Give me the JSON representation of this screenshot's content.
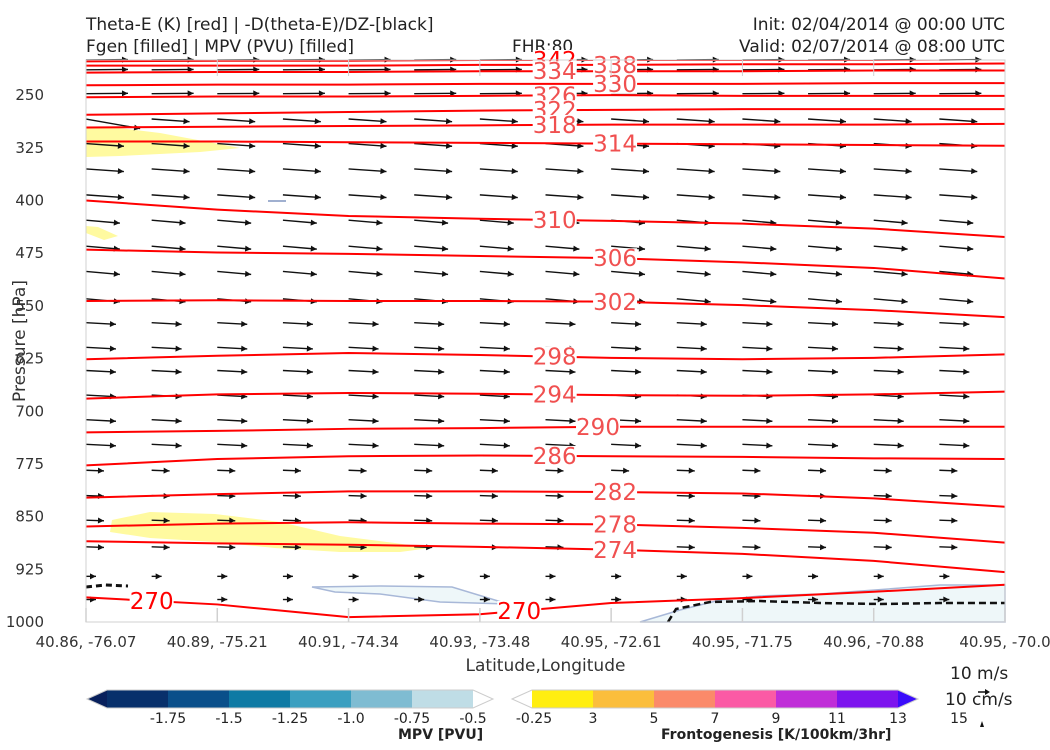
{
  "header": {
    "title_line1": "Theta-E (K) [red] | -D(theta-E)/DZ-[black]",
    "title_line2": "Fgen [filled] | MPV (PVU) [filled]",
    "fhr": "FHR:80",
    "init": "Init: 02/04/2014 @ 00:00 UTC",
    "valid": "Valid: 02/07/2014 @ 08:00 UTC"
  },
  "colors": {
    "theta_e": "#ff0000",
    "theta_e_label": "#f05050",
    "vectors": "#111111",
    "fgen_fill": "#fffaa0",
    "mpv_fill": "#eef7f9",
    "mpv_edge": "#a8b8d8"
  },
  "chart_data": {
    "type": "cross-section",
    "xlabel": "Latitude,Longitude",
    "ylabel": "Pressure [hPa]",
    "x_ticks": [
      "40.86, -76.07",
      "40.89, -75.21",
      "40.91, -74.34",
      "40.93, -73.48",
      "40.95, -72.61",
      "40.95, -71.75",
      "40.96, -70.88",
      "40.95, -70.0"
    ],
    "y_ticks": [
      "250",
      "325",
      "400",
      "475",
      "550",
      "625",
      "700",
      "775",
      "850",
      "925",
      "1000"
    ],
    "ylim": [
      1000,
      200
    ],
    "y_scale": "linear, inverted",
    "xlim": [
      0,
      7
    ],
    "theta_e_contours": [
      {
        "value": 342,
        "label": "342",
        "p": [
          202,
          201,
          201,
          200,
          200,
          200,
          200,
          199
        ]
      },
      {
        "value": 338,
        "label": "338",
        "p": [
          208,
          208,
          208,
          207,
          207,
          206,
          206,
          205
        ]
      },
      {
        "value": 334,
        "label": "334",
        "p": [
          218,
          217,
          217,
          216,
          216,
          216,
          215,
          215
        ]
      },
      {
        "value": 330,
        "label": "330",
        "p": [
          236,
          235,
          235,
          234,
          234,
          234,
          233,
          233
        ]
      },
      {
        "value": 326,
        "label": "326",
        "p": [
          253,
          252,
          252,
          251,
          250,
          251,
          251,
          251
        ]
      },
      {
        "value": 322,
        "label": "322",
        "p": [
          278,
          276,
          274,
          272,
          271,
          270,
          270,
          270
        ]
      },
      {
        "value": 318,
        "label": "318",
        "p": [
          296,
          295,
          294,
          293,
          292,
          292,
          292,
          291
        ]
      },
      {
        "value": 314,
        "label": "314",
        "p": [
          316,
          316,
          317,
          318,
          319,
          320,
          321,
          322
        ]
      },
      {
        "value": 310,
        "label": "310",
        "p": [
          400,
          413,
          422,
          426,
          429,
          433,
          440,
          452
        ]
      },
      {
        "value": 306,
        "label": "306",
        "p": [
          470,
          474,
          476,
          479,
          482,
          488,
          496,
          511
        ]
      },
      {
        "value": 302,
        "label": "302",
        "p": [
          543,
          542,
          543,
          543,
          544,
          549,
          556,
          566
        ]
      },
      {
        "value": 298,
        "label": "298",
        "p": [
          626,
          621,
          617,
          620,
          624,
          626,
          624,
          619
        ]
      },
      {
        "value": 294,
        "label": "294",
        "p": [
          682,
          676,
          674,
          675,
          677,
          678,
          676,
          672
        ]
      },
      {
        "value": 290,
        "label": "290",
        "p": [
          730,
          728,
          725,
          724,
          722,
          722,
          722,
          722
        ]
      },
      {
        "value": 286,
        "label": "286",
        "p": [
          777,
          768,
          764,
          763,
          764,
          765,
          767,
          768
        ]
      },
      {
        "value": 282,
        "label": "282",
        "p": [
          823,
          818,
          814,
          814,
          815,
          817,
          824,
          836
        ]
      },
      {
        "value": 278,
        "label": "278",
        "p": [
          864,
          860,
          858,
          860,
          861,
          866,
          873,
          887
        ]
      },
      {
        "value": 274,
        "label": "274",
        "p": [
          885,
          888,
          890,
          893,
          897,
          903,
          913,
          929
        ]
      },
      {
        "value": 270,
        "label": "270",
        "p": [
          965,
          975,
          993,
          989,
          973,
          966,
          957,
          947
        ]
      }
    ],
    "fgen_colorbar": {
      "title": "Frontogenesis [K/100km/3hr]",
      "ticks": [
        "3",
        "5",
        "7",
        "9",
        "11",
        "13",
        "15"
      ],
      "colors": [
        "#ffffff",
        "#ffee11",
        "#fbbe3c",
        "#fb8a6a",
        "#fb5aa5",
        "#c02ed8",
        "#7d14ee",
        "#3a0cfb"
      ]
    },
    "mpv_colorbar": {
      "title": "MPV [PVU]",
      "ticks": [
        "-1.75",
        "-1.5",
        "-1.25",
        "-1.0",
        "-0.75",
        "-0.5",
        "-0.25"
      ],
      "colors": [
        "#08205c",
        "#08306b",
        "#0a4f8a",
        "#0e7aa4",
        "#3b9fc0",
        "#7fbcd2",
        "#bfdde6",
        "#ffffff"
      ]
    },
    "vector_key": {
      "u_label": "10 m/s",
      "w_label": "10 cm/s"
    }
  }
}
